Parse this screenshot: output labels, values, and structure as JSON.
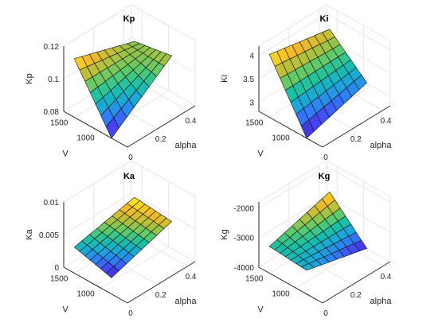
{
  "colormap": [
    "#3e26a8",
    "#4743f7",
    "#2f7ef8",
    "#1aa8d8",
    "#18c0a6",
    "#5bcb6c",
    "#b1c13b",
    "#f6b82a",
    "#f9fb15"
  ],
  "chart_data": [
    {
      "type": "surface",
      "title": "Kp",
      "xlabel": "alpha",
      "ylabel": "V",
      "zlabel": "Kp",
      "xticks": [
        "0",
        "0.2",
        "0.4"
      ],
      "yticks": [
        "1000",
        "1500"
      ],
      "zticks": [
        "0.08",
        "0.1",
        "0.12"
      ],
      "xlim": [
        0,
        0.45
      ],
      "ylim": [
        500,
        1700
      ],
      "zlim": [
        0.08,
        0.12
      ],
      "alpha": [
        0,
        0.05,
        0.1,
        0.15,
        0.2,
        0.25,
        0.3,
        0.35,
        0.4
      ],
      "V": [
        800,
        900,
        1000,
        1100,
        1200,
        1300,
        1400,
        1500
      ],
      "corners": {
        "alpha0_Vmin": 0.08,
        "alpha0_Vmax": 0.116,
        "alphaMax_Vmin": 0.108,
        "alphaMax_Vmax": 0.104
      }
    },
    {
      "type": "surface",
      "title": "Ki",
      "xlabel": "alpha",
      "ylabel": "V",
      "zlabel": "Ki",
      "xticks": [
        "0",
        "0.2",
        "0.4"
      ],
      "yticks": [
        "1000",
        "1500"
      ],
      "zticks": [
        "3",
        "3.5",
        "4"
      ],
      "xlim": [
        0,
        0.45
      ],
      "ylim": [
        500,
        1700
      ],
      "zlim": [
        2.8,
        4.2
      ],
      "alpha": [
        0,
        0.05,
        0.1,
        0.15,
        0.2,
        0.25,
        0.3,
        0.35,
        0.4
      ],
      "V": [
        800,
        900,
        1000,
        1100,
        1200,
        1300,
        1400,
        1500
      ],
      "corners": {
        "alpha0_Vmin": 2.8,
        "alpha0_Vmax": 4.15,
        "alphaMax_Vmin": 3.2,
        "alphaMax_Vmax": 3.9
      }
    },
    {
      "type": "surface",
      "title": "Ka",
      "xlabel": "alpha",
      "ylabel": "V",
      "zlabel": "Ka",
      "xticks": [
        "0",
        "0.2",
        "0.4"
      ],
      "yticks": [
        "1000",
        "1500"
      ],
      "zticks": [
        "0",
        "0.005",
        "0.01"
      ],
      "xlim": [
        0,
        0.45
      ],
      "ylim": [
        500,
        1700
      ],
      "zlim": [
        0,
        0.01
      ],
      "alpha": [
        0,
        0.05,
        0.1,
        0.15,
        0.2,
        0.25,
        0.3,
        0.35,
        0.4
      ],
      "V": [
        800,
        900,
        1000,
        1100,
        1200,
        1300,
        1400,
        1500
      ],
      "corners": {
        "alpha0_Vmin": 0.0025,
        "alpha0_Vmax": 0.004,
        "alphaMax_Vmin": 0.0055,
        "alphaMax_Vmax": 0.006
      }
    },
    {
      "type": "surface",
      "title": "Kg",
      "xlabel": "alpha",
      "ylabel": "V",
      "zlabel": "Kg",
      "xticks": [
        "0",
        "0.2",
        "0.4"
      ],
      "yticks": [
        "1000",
        "1500"
      ],
      "zticks": [
        "-4000",
        "-3000",
        "-2000"
      ],
      "xlim": [
        0,
        0.45
      ],
      "ylim": [
        500,
        1700
      ],
      "zlim": [
        -4000,
        -1800
      ],
      "alpha": [
        0,
        0.05,
        0.1,
        0.15,
        0.2,
        0.25,
        0.3,
        0.35,
        0.4
      ],
      "V": [
        800,
        900,
        1000,
        1100,
        1200,
        1300,
        1400,
        1500
      ],
      "corners": {
        "alpha0_Vmin": -3200,
        "alpha0_Vmax": -3100,
        "alphaMax_Vmin": -3700,
        "alphaMax_Vmax": -2500
      }
    }
  ]
}
